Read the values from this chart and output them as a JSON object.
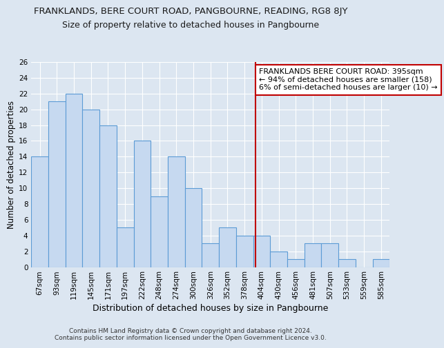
{
  "title1": "FRANKLANDS, BERE COURT ROAD, PANGBOURNE, READING, RG8 8JY",
  "title2": "Size of property relative to detached houses in Pangbourne",
  "xlabel": "Distribution of detached houses by size in Pangbourne",
  "ylabel": "Number of detached properties",
  "categories": [
    "67sqm",
    "93sqm",
    "119sqm",
    "145sqm",
    "171sqm",
    "197sqm",
    "222sqm",
    "248sqm",
    "274sqm",
    "300sqm",
    "326sqm",
    "352sqm",
    "378sqm",
    "404sqm",
    "430sqm",
    "456sqm",
    "481sqm",
    "507sqm",
    "533sqm",
    "559sqm",
    "585sqm"
  ],
  "values": [
    14,
    21,
    22,
    20,
    18,
    5,
    16,
    9,
    14,
    10,
    3,
    5,
    4,
    4,
    2,
    1,
    3,
    3,
    1,
    0,
    1
  ],
  "bar_color": "#c6d9f0",
  "bar_edge_color": "#5b9bd5",
  "background_color": "#dce6f1",
  "grid_color": "#ffffff",
  "ylim": [
    0,
    26
  ],
  "yticks": [
    0,
    2,
    4,
    6,
    8,
    10,
    12,
    14,
    16,
    18,
    20,
    22,
    24,
    26
  ],
  "vline_color": "#c00000",
  "annotation_text": "FRANKLANDS BERE COURT ROAD: 395sqm\n← 94% of detached houses are smaller (158)\n6% of semi-detached houses are larger (10) →",
  "annotation_box_color": "#ffffff",
  "annotation_box_edge": "#c00000",
  "footer1": "Contains HM Land Registry data © Crown copyright and database right 2024.",
  "footer2": "Contains public sector information licensed under the Open Government Licence v3.0.",
  "title1_fontsize": 9.5,
  "title2_fontsize": 9,
  "ylabel_fontsize": 8.5,
  "xlabel_fontsize": 9,
  "tick_fontsize": 7.5,
  "annotation_fontsize": 8,
  "footer_fontsize": 6.5
}
